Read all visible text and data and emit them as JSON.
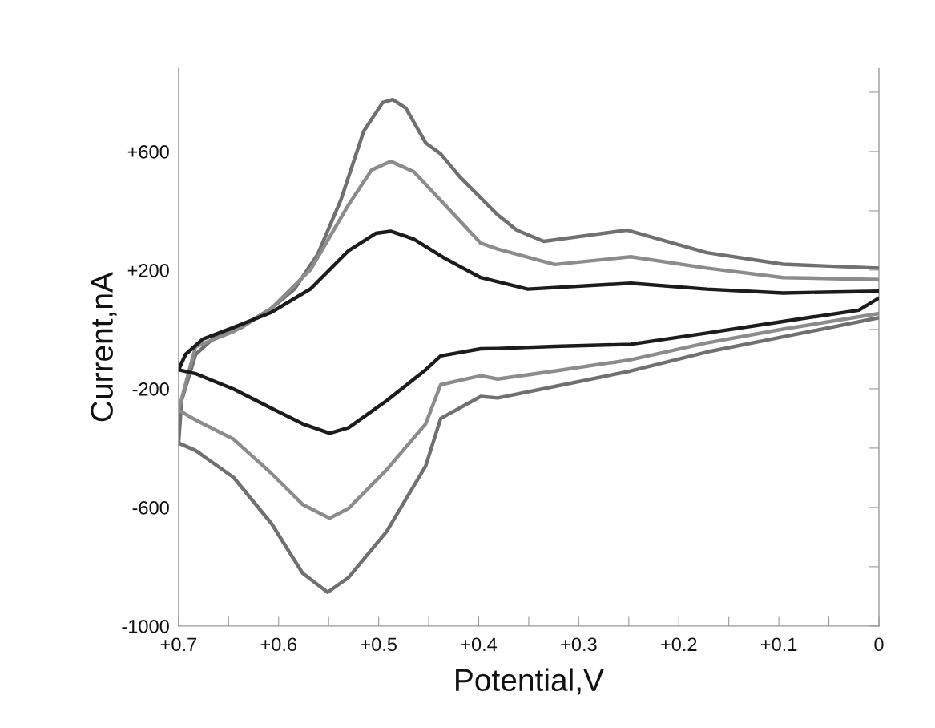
{
  "chart_data": {
    "type": "line",
    "xlabel": "Potential,V",
    "ylabel": "Current,nA",
    "xlim": [
      0.7,
      0
    ],
    "ylim": [
      -1000,
      880
    ],
    "xticks": [
      {
        "value": 0.7,
        "label": "+0.7"
      },
      {
        "value": 0.65,
        "label": null
      },
      {
        "value": 0.6,
        "label": "+0.6"
      },
      {
        "value": 0.55,
        "label": null
      },
      {
        "value": 0.5,
        "label": "+0.5"
      },
      {
        "value": 0.45,
        "label": null
      },
      {
        "value": 0.4,
        "label": "+0.4"
      },
      {
        "value": 0.35,
        "label": null
      },
      {
        "value": 0.3,
        "label": "+0.3"
      },
      {
        "value": 0.25,
        "label": null
      },
      {
        "value": 0.2,
        "label": "+0.2"
      },
      {
        "value": 0.15,
        "label": null
      },
      {
        "value": 0.1,
        "label": "+0.1"
      },
      {
        "value": 0.05,
        "label": null
      },
      0
    ],
    "yticks": [
      -1000,
      {
        "value": -800,
        "label": null
      },
      {
        "value": -600,
        "label": "-600"
      },
      {
        "value": -400,
        "label": null
      },
      {
        "value": -200,
        "label": "-200"
      },
      {
        "value": 0,
        "label": null
      },
      {
        "value": 200,
        "label": "+200"
      },
      {
        "value": 400,
        "label": null
      },
      {
        "value": 600,
        "label": "+600"
      },
      {
        "value": 800,
        "label": null
      }
    ],
    "grid": false,
    "marker": "none",
    "line_style": "solid",
    "series": [
      {
        "color": "#707070",
        "x": [
          0.7,
          0.697,
          0.683,
          0.664,
          0.637,
          0.607,
          0.584,
          0.561,
          0.538,
          0.515,
          0.496,
          0.486,
          0.473,
          0.453,
          0.438,
          0.419,
          0.4,
          0.381,
          0.362,
          0.335,
          0.252,
          0.172,
          0.096,
          0.001
        ],
        "values": [
          -383,
          -240,
          -84,
          -26,
          7,
          72,
          137,
          253,
          435,
          668,
          765,
          775,
          747,
          629,
          592,
          515,
          451,
          386,
          335,
          297,
          335,
          259,
          220,
          207
        ]
      },
      {
        "color": "#707070",
        "x": [
          0.001,
          0.096,
          0.172,
          0.248,
          0.324,
          0.381,
          0.398,
          0.438,
          0.453,
          0.492,
          0.53,
          0.551,
          0.576,
          0.607,
          0.645,
          0.683,
          0.7
        ],
        "values": [
          39,
          -25,
          -76,
          -140,
          -192,
          -231,
          -226,
          -300,
          -460,
          -681,
          -836,
          -886,
          -822,
          -655,
          -499,
          -408,
          -383
        ]
      },
      {
        "color": "#8c8c8c",
        "x": [
          0.7,
          0.683,
          0.645,
          0.607,
          0.568,
          0.53,
          0.507,
          0.488,
          0.465,
          0.434,
          0.398,
          0.381,
          0.324,
          0.248,
          0.172,
          0.096,
          0.001
        ],
        "values": [
          -272,
          -58,
          -7,
          72,
          202,
          421,
          538,
          567,
          532,
          421,
          291,
          271,
          219,
          245,
          207,
          175,
          168
        ]
      },
      {
        "color": "#8c8c8c",
        "x": [
          0.001,
          0.096,
          0.172,
          0.248,
          0.324,
          0.381,
          0.398,
          0.438,
          0.453,
          0.492,
          0.53,
          0.549,
          0.576,
          0.607,
          0.645,
          0.683,
          0.7
        ],
        "values": [
          53,
          1,
          -45,
          -102,
          -140,
          -167,
          -156,
          -186,
          -318,
          -473,
          -603,
          -636,
          -590,
          -486,
          -370,
          -305,
          -272
        ]
      },
      {
        "color": "#1c1c1c",
        "x": [
          0.7,
          0.693,
          0.676,
          0.645,
          0.607,
          0.568,
          0.53,
          0.503,
          0.488,
          0.465,
          0.434,
          0.398,
          0.351,
          0.248,
          0.172,
          0.096,
          0.001
        ],
        "values": [
          -136,
          -84,
          -33,
          7,
          58,
          137,
          266,
          324,
          331,
          305,
          240,
          175,
          136,
          156,
          136,
          123,
          129
        ]
      },
      {
        "color": "#1c1c1c",
        "x": [
          0.001,
          0.02,
          0.096,
          0.172,
          0.248,
          0.324,
          0.381,
          0.398,
          0.438,
          0.453,
          0.492,
          0.53,
          0.549,
          0.576,
          0.607,
          0.645,
          0.683,
          0.7
        ],
        "values": [
          104,
          65,
          27,
          -12,
          -50,
          -57,
          -64,
          -65,
          -89,
          -136,
          -240,
          -331,
          -350,
          -318,
          -266,
          -201,
          -149,
          -136
        ]
      }
    ]
  }
}
